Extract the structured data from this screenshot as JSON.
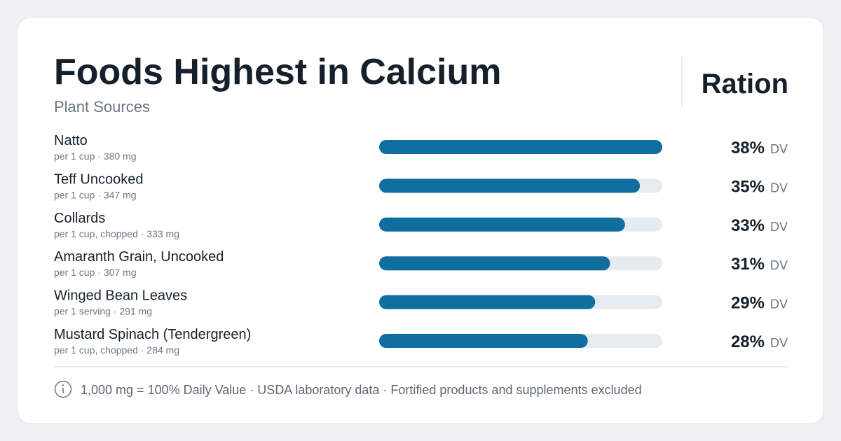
{
  "chart_data": {
    "type": "bar",
    "orientation": "horizontal",
    "title": "Foods Highest in Calcium",
    "subtitle": "Plant Sources",
    "brand": "Ration",
    "categories": [
      "Natto",
      "Teff Uncooked",
      "Collards",
      "Amaranth Grain, Uncooked",
      "Winged Bean Leaves",
      "Mustard Spinach (Tendergreen)"
    ],
    "details": [
      "per 1 cup · 380 mg",
      "per 1 cup · 347 mg",
      "per 1 cup, chopped · 333 mg",
      "per 1 cup · 307 mg",
      "per 1 serving · 291 mg",
      "per 1 cup, chopped · 284 mg"
    ],
    "values": [
      38,
      35,
      33,
      31,
      29,
      28
    ],
    "value_labels": [
      "38%",
      "35%",
      "33%",
      "31%",
      "29%",
      "28%"
    ],
    "value_suffix": "DV",
    "xlim": [
      0,
      38
    ],
    "color": "#0f6e9e",
    "track_color": "#e6ebf0",
    "footnote": "1,000 mg = 100% Daily Value · USDA laboratory data · Fortified products and supplements excluded"
  }
}
